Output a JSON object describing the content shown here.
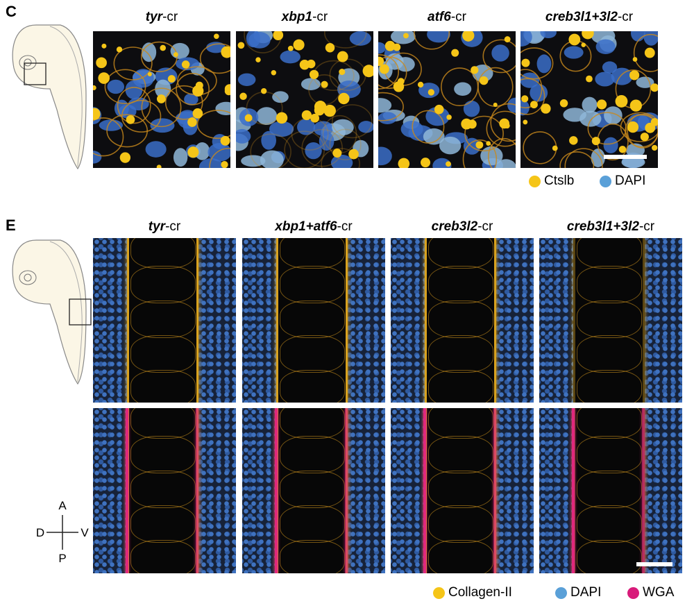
{
  "panel_c": {
    "label": "C",
    "columns": [
      {
        "gene": "tyr",
        "suffix": "-cr"
      },
      {
        "gene": "xbp1",
        "suffix": "-cr"
      },
      {
        "gene": "atf6",
        "suffix": "-cr"
      },
      {
        "gene": "creb3l1+3l2",
        "suffix": "-cr"
      }
    ],
    "legend": [
      "Ctslb",
      "DAPI"
    ]
  },
  "panel_e": {
    "label": "E",
    "columns": [
      {
        "gene": "tyr",
        "suffix": "-cr"
      },
      {
        "gene": "xbp1+atf6",
        "suffix": "-cr"
      },
      {
        "gene": "creb3l2",
        "suffix": "-cr"
      },
      {
        "gene": "creb3l1+3l2",
        "suffix": "-cr"
      }
    ],
    "legend": [
      "Collagen-II",
      "DAPI",
      "WGA"
    ],
    "compass": {
      "top": "A",
      "left": "D",
      "right": "V",
      "bottom": "P"
    }
  }
}
